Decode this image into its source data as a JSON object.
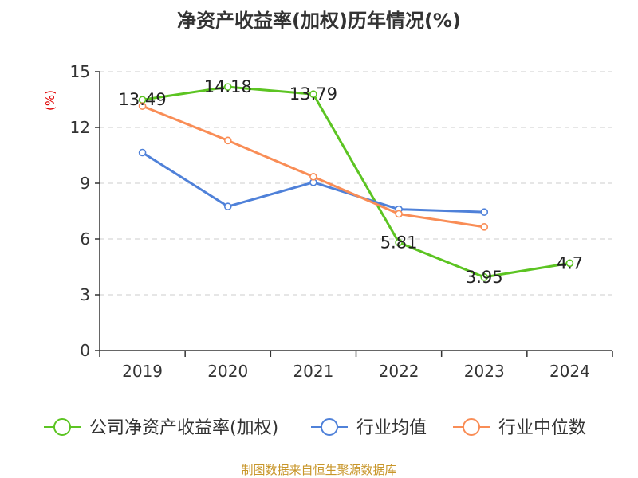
{
  "chart_data": {
    "type": "line",
    "title": "净资产收益率(加权)历年情况(%)",
    "ylabel": "(%)",
    "xlabel": "",
    "categories": [
      "2019",
      "2020",
      "2021",
      "2022",
      "2023",
      "2024"
    ],
    "ylim": [
      0,
      15
    ],
    "yticks": [
      0,
      3,
      6,
      9,
      12,
      15
    ],
    "grid": true,
    "legend_position": "bottom",
    "series": [
      {
        "name": "公司净资产收益率(加权)",
        "color": "#5cc422",
        "values": [
          13.49,
          14.18,
          13.79,
          5.81,
          3.95,
          4.7
        ],
        "labels": [
          "13.49",
          "14.18",
          "13.79",
          "5.81",
          "3.95",
          "4.7"
        ]
      },
      {
        "name": "行业均值",
        "color": "#4f81d9",
        "values": [
          10.65,
          7.75,
          9.05,
          7.6,
          7.45,
          null
        ]
      },
      {
        "name": "行业中位数",
        "color": "#f98d56",
        "values": [
          13.15,
          11.3,
          9.35,
          7.35,
          6.65,
          null
        ]
      }
    ],
    "source": "制图数据来自恒生聚源数据库"
  }
}
